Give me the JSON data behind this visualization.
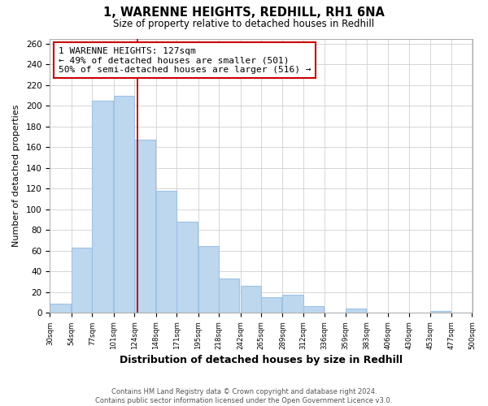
{
  "title": "1, WARENNE HEIGHTS, REDHILL, RH1 6NA",
  "subtitle": "Size of property relative to detached houses in Redhill",
  "xlabel": "Distribution of detached houses by size in Redhill",
  "ylabel": "Number of detached properties",
  "bar_left_edges": [
    30,
    54,
    77,
    101,
    124,
    148,
    171,
    195,
    218,
    242,
    265,
    289,
    312,
    336,
    359,
    383,
    406,
    430,
    453,
    477
  ],
  "bar_heights": [
    9,
    63,
    205,
    210,
    167,
    118,
    88,
    65,
    33,
    26,
    15,
    18,
    7,
    0,
    4,
    0,
    0,
    0,
    2,
    0
  ],
  "bin_width": 23,
  "bar_color": "#bdd7ee",
  "bar_edge_color": "#9dc3e6",
  "property_line_x": 127,
  "property_line_color": "#cc0000",
  "annotation_line1": "1 WARENNE HEIGHTS: 127sqm",
  "annotation_line2": "← 49% of detached houses are smaller (501)",
  "annotation_line3": "50% of semi-detached houses are larger (516) →",
  "annotation_box_color": "#ffffff",
  "annotation_box_edge": "#cc0000",
  "ylim_max": 265,
  "yticks": [
    0,
    20,
    40,
    60,
    80,
    100,
    120,
    140,
    160,
    180,
    200,
    220,
    240,
    260
  ],
  "tick_labels": [
    "30sqm",
    "54sqm",
    "77sqm",
    "101sqm",
    "124sqm",
    "148sqm",
    "171sqm",
    "195sqm",
    "218sqm",
    "242sqm",
    "265sqm",
    "289sqm",
    "312sqm",
    "336sqm",
    "359sqm",
    "383sqm",
    "406sqm",
    "430sqm",
    "453sqm",
    "477sqm",
    "500sqm"
  ],
  "footnote_line1": "Contains HM Land Registry data © Crown copyright and database right 2024.",
  "footnote_line2": "Contains public sector information licensed under the Open Government Licence v3.0.",
  "background_color": "#ffffff",
  "grid_color": "#d0d0d0"
}
